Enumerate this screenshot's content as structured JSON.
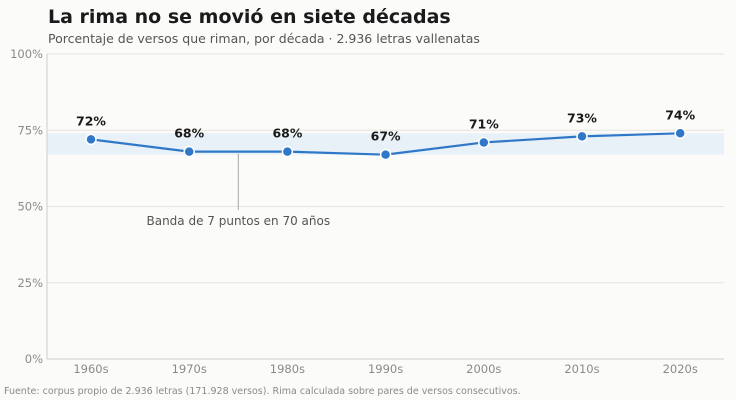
{
  "chart_data": {
    "type": "line",
    "title": "La rima no se movió en siete décadas",
    "subtitle": "Porcentaje de versos que riman, por década · 2.936 letras vallenatas",
    "categories": [
      "1960s",
      "1970s",
      "1980s",
      "1990s",
      "2000s",
      "2010s",
      "2020s"
    ],
    "series": [
      {
        "values": [
          72,
          68,
          68,
          67,
          71,
          73,
          74
        ]
      }
    ],
    "data_labels": [
      "72%",
      "68%",
      "68%",
      "67%",
      "71%",
      "73%",
      "74%"
    ],
    "yticks": [
      0,
      25,
      50,
      75,
      100
    ],
    "ytick_labels": [
      "0%",
      "25%",
      "50%",
      "75%",
      "100%"
    ],
    "ylim": [
      0,
      100
    ],
    "band": {
      "from": 67,
      "to": 74
    },
    "annotation": {
      "text": "Banda de 7 puntos en 70 años",
      "x_between": [
        "1970s",
        "1980s"
      ]
    },
    "grid": "horizontal",
    "footer": "Fuente: corpus propio de 2.936 letras (171.928 versos). Rima calculada sobre pares de versos consecutivos.",
    "colors": {
      "line": "#2f78c8",
      "marker": "#2f78c8",
      "band": "#e8f0f8",
      "grid": "#e6e4dc",
      "axis": "#cfcdc6"
    }
  }
}
